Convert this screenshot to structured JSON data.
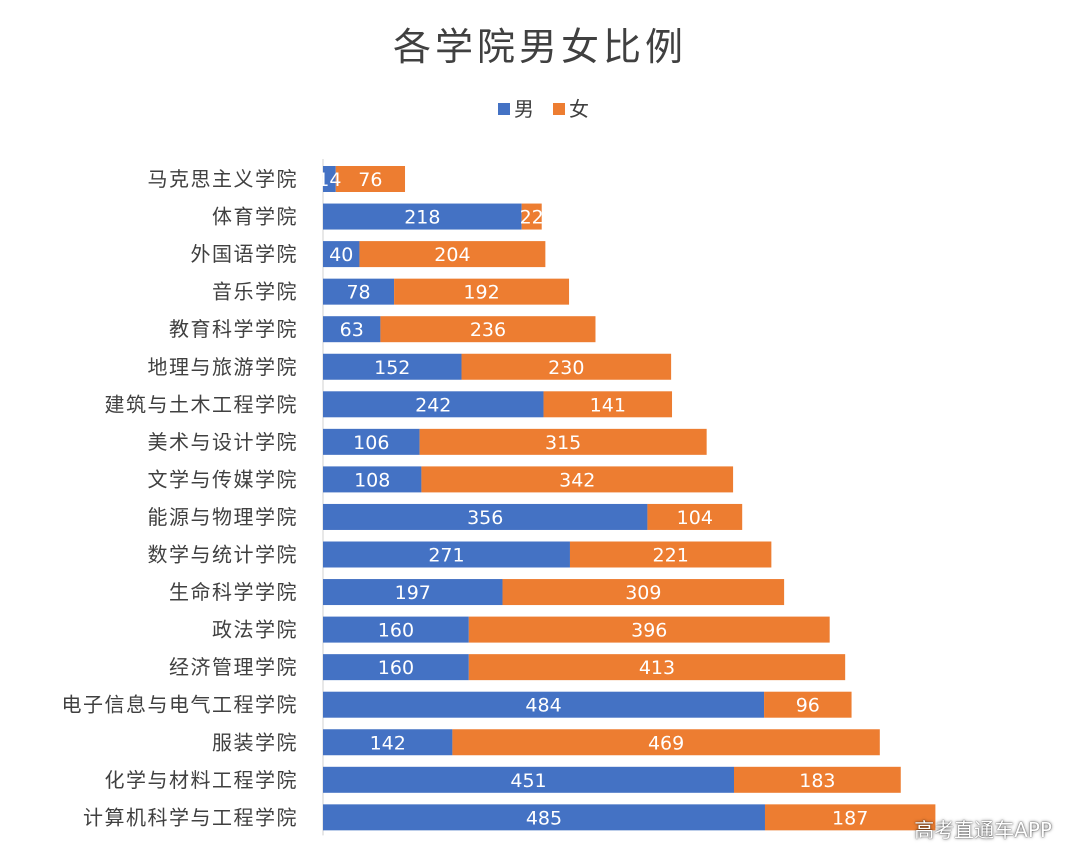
{
  "chart_data": {
    "type": "bar",
    "orientation": "horizontal",
    "stacked": true,
    "title": "各学院男女比例",
    "legend": {
      "position": "top",
      "entries": [
        "男",
        "女"
      ]
    },
    "categories": [
      "马克思主义学院",
      "体育学院",
      "外国语学院",
      "音乐学院",
      "教育科学学院",
      "地理与旅游学院",
      "建筑与土木工程学院",
      "美术与设计学院",
      "文学与传媒学院",
      "能源与物理学院",
      "数学与统计学院",
      "生命科学学院",
      "政法学院",
      "经济管理学院",
      "电子信息与电气工程学院",
      "服装学院",
      "化学与材料工程学院",
      "计算机科学与工程学院"
    ],
    "series": [
      {
        "name": "男",
        "color": "#4472C4",
        "values": [
          14,
          218,
          40,
          78,
          63,
          152,
          242,
          106,
          108,
          356,
          271,
          197,
          160,
          160,
          484,
          142,
          451,
          485
        ]
      },
      {
        "name": "女",
        "color": "#ED7D31",
        "values": [
          76,
          22,
          204,
          192,
          236,
          230,
          141,
          315,
          342,
          104,
          221,
          309,
          396,
          413,
          96,
          469,
          183,
          187
        ]
      }
    ],
    "xlim": [
      0,
      672
    ],
    "grid": false
  },
  "watermark": "高考直通车APP"
}
